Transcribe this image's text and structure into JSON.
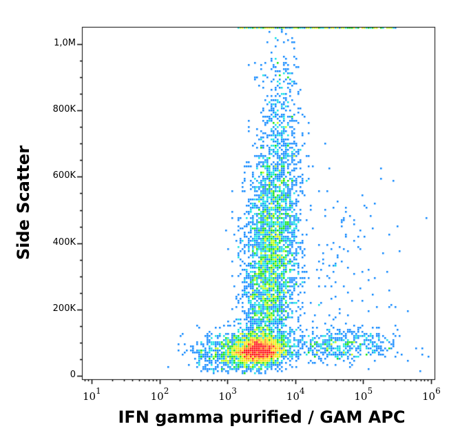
{
  "chart_data": {
    "type": "scatter",
    "subtype": "flow-cytometry-density-dot-plot",
    "title": "",
    "xlabel": "IFN gamma purified / GAM APC",
    "ylabel": "Side Scatter",
    "x_scale": "log",
    "xlim": [
      5,
      1000000
    ],
    "x_ticks": [
      {
        "value": 10,
        "base": "10",
        "exp": "1"
      },
      {
        "value": 100,
        "base": "10",
        "exp": "2"
      },
      {
        "value": 1000,
        "base": "10",
        "exp": "3"
      },
      {
        "value": 10000,
        "base": "10",
        "exp": "4"
      },
      {
        "value": 100000,
        "base": "10",
        "exp": "5"
      },
      {
        "value": 1000000,
        "base": "10",
        "exp": "6"
      }
    ],
    "y_scale": "linear",
    "ylim": [
      0,
      1050000
    ],
    "y_ticks": [
      {
        "value": 0,
        "label": "0"
      },
      {
        "value": 200000,
        "label": "200K"
      },
      {
        "value": 400000,
        "label": "400K"
      },
      {
        "value": 600000,
        "label": "600K"
      },
      {
        "value": 800000,
        "label": "800K"
      },
      {
        "value": 1000000,
        "label": "1,0M"
      }
    ],
    "grid": false,
    "legend": null,
    "color_scale": [
      "#0000ff",
      "#0080ff",
      "#00e0e0",
      "#00e000",
      "#c0ff00",
      "#ffe000",
      "#ff8000",
      "#ff0000"
    ],
    "populations": [
      {
        "name": "main-cluster-dense-core",
        "x_center": 2800,
        "y_center": 75000,
        "x_spread_log": 0.18,
        "y_spread": 22000,
        "count": 2600
      },
      {
        "name": "vertical-stream",
        "x_center": 3500,
        "y_center": 330000,
        "x_spread_log": 0.2,
        "y_spread": 190000,
        "count": 3200
      },
      {
        "name": "upper-stream",
        "x_center": 6000,
        "y_center": 700000,
        "x_spread_log": 0.15,
        "y_spread": 180000,
        "count": 500
      },
      {
        "name": "low-horizontal-tail",
        "x_center": 40000,
        "y_center": 90000,
        "x_spread_log": 0.45,
        "y_spread": 25000,
        "count": 500
      },
      {
        "name": "left-shoulder",
        "x_center": 900,
        "y_center": 70000,
        "x_spread_log": 0.25,
        "y_spread": 30000,
        "count": 500
      },
      {
        "name": "sparse-scatter",
        "x_center": 30000,
        "y_center": 300000,
        "x_spread_log": 0.6,
        "y_spread": 160000,
        "count": 180
      },
      {
        "name": "saturated-top-band",
        "x_min": 1500,
        "x_max": 300000,
        "y_value": 1050000,
        "count": 250
      }
    ]
  }
}
